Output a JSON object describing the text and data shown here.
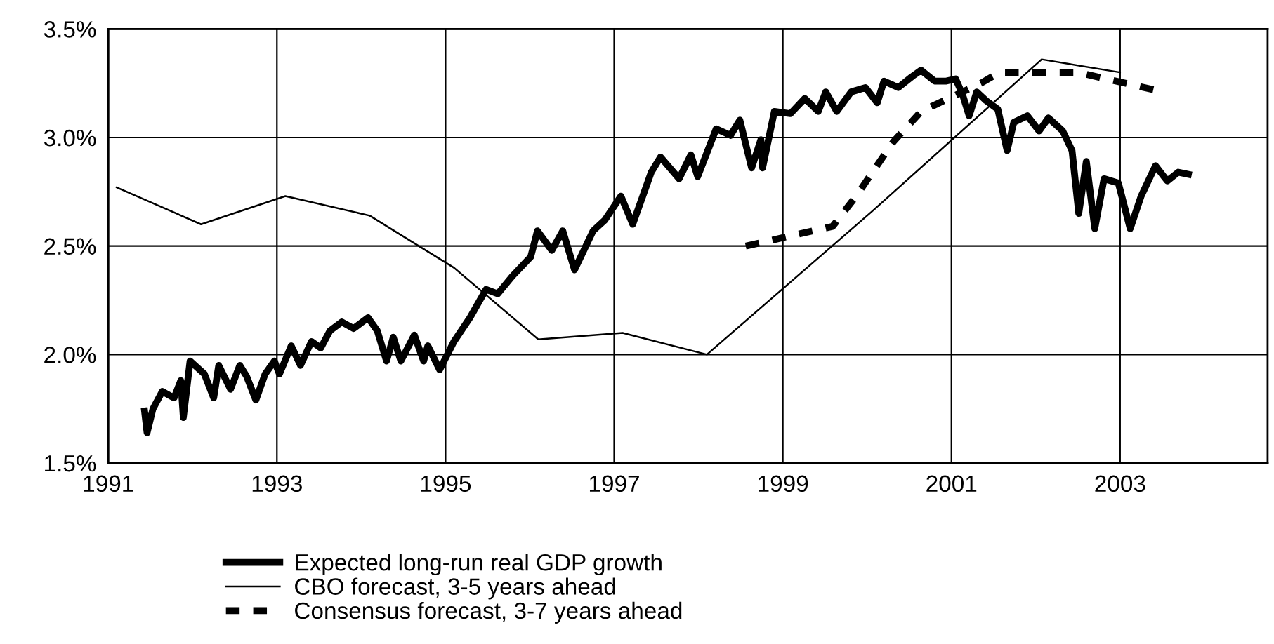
{
  "chart_data": {
    "type": "line",
    "xlim": [
      1991,
      2004.75
    ],
    "xticks": [
      1991,
      1993,
      1995,
      1997,
      1999,
      2001,
      2003
    ],
    "ylim": [
      1.5,
      3.5
    ],
    "yticks": [
      {
        "value": 1.5,
        "label": "1.5%"
      },
      {
        "value": 2.0,
        "label": "2.0%"
      },
      {
        "value": 2.5,
        "label": "2.5%"
      },
      {
        "value": 3.0,
        "label": "3.0%"
      },
      {
        "value": 3.5,
        "label": "3.5%"
      }
    ],
    "grid": true,
    "legend": "bottom",
    "marker": "none",
    "series": [
      {
        "name": "Expected long-run real GDP growth",
        "color": "#000000",
        "line_style": "solid",
        "x": [
          1991.43,
          1991.46,
          1991.53,
          1991.64,
          1991.78,
          1991.86,
          1991.89,
          1991.97,
          1992.14,
          1992.25,
          1992.31,
          1992.45,
          1992.56,
          1992.64,
          1992.75,
          1992.86,
          1992.97,
          1993.03,
          1993.17,
          1993.28,
          1993.41,
          1993.52,
          1993.63,
          1993.77,
          1993.91,
          1994.08,
          1994.19,
          1994.3,
          1994.38,
          1994.47,
          1994.63,
          1994.74,
          1994.79,
          1994.93,
          1995.1,
          1995.29,
          1995.48,
          1995.62,
          1995.79,
          1996.01,
          1996.09,
          1996.26,
          1996.39,
          1996.53,
          1996.75,
          1996.89,
          1997.08,
          1997.22,
          1997.44,
          1997.55,
          1997.77,
          1997.91,
          1997.99,
          1998.21,
          1998.38,
          1998.49,
          1998.63,
          1998.74,
          1998.76,
          1998.9,
          1999.09,
          1999.26,
          1999.42,
          1999.51,
          1999.64,
          1999.81,
          1999.98,
          2000.12,
          2000.2,
          2000.37,
          2000.53,
          2000.64,
          2000.8,
          2000.94,
          2001.05,
          2001.13,
          2001.21,
          2001.3,
          2001.41,
          2001.55,
          2001.66,
          2001.74,
          2001.9,
          2002.04,
          2002.15,
          2002.32,
          2002.43,
          2002.51,
          2002.6,
          2002.7,
          2002.81,
          2002.98,
          2003.12,
          2003.25,
          2003.42,
          2003.56,
          2003.69,
          2003.81
        ],
        "values": [
          1.74,
          1.64,
          1.75,
          1.83,
          1.8,
          1.88,
          1.71,
          1.97,
          1.91,
          1.8,
          1.95,
          1.84,
          1.95,
          1.9,
          1.79,
          1.91,
          1.97,
          1.91,
          2.04,
          1.95,
          2.06,
          2.03,
          2.11,
          2.15,
          2.12,
          2.17,
          2.11,
          1.97,
          2.08,
          1.97,
          2.09,
          1.97,
          2.04,
          1.93,
          2.06,
          2.17,
          2.3,
          2.28,
          2.36,
          2.45,
          2.57,
          2.48,
          2.57,
          2.39,
          2.57,
          2.62,
          2.73,
          2.6,
          2.84,
          2.91,
          2.81,
          2.92,
          2.82,
          3.04,
          3.01,
          3.08,
          2.86,
          2.99,
          2.86,
          3.12,
          3.11,
          3.18,
          3.12,
          3.21,
          3.12,
          3.21,
          3.23,
          3.16,
          3.26,
          3.23,
          3.28,
          3.31,
          3.26,
          3.26,
          3.27,
          3.2,
          3.1,
          3.21,
          3.17,
          3.13,
          2.94,
          3.07,
          3.1,
          3.03,
          3.09,
          3.03,
          2.94,
          2.65,
          2.89,
          2.58,
          2.81,
          2.79,
          2.58,
          2.73,
          2.87,
          2.8,
          2.84,
          2.83
        ]
      },
      {
        "name": "CBO forecast, 3-5 years ahead",
        "color": "#000000",
        "line_style": "solid",
        "x": [
          1991.1,
          1992.1,
          1993.1,
          1994.1,
          1995.1,
          1996.1,
          1997.1,
          1998.1,
          2000.06,
          2002.07,
          2003.0
        ],
        "values": [
          2.77,
          2.6,
          2.73,
          2.64,
          2.4,
          2.07,
          2.1,
          2.0,
          2.66,
          3.36,
          3.3
        ]
      },
      {
        "name": "Consensus forecast, 3-7 years ahead",
        "color": "#000000",
        "line_style": "dashed",
        "x": [
          1998.56,
          1999.59,
          1999.87,
          2000.31,
          2000.64,
          2001.35,
          2001.57,
          2002.5,
          2003.4
        ],
        "values": [
          2.5,
          2.59,
          2.73,
          2.98,
          3.12,
          3.25,
          3.3,
          3.3,
          3.22
        ]
      }
    ]
  }
}
